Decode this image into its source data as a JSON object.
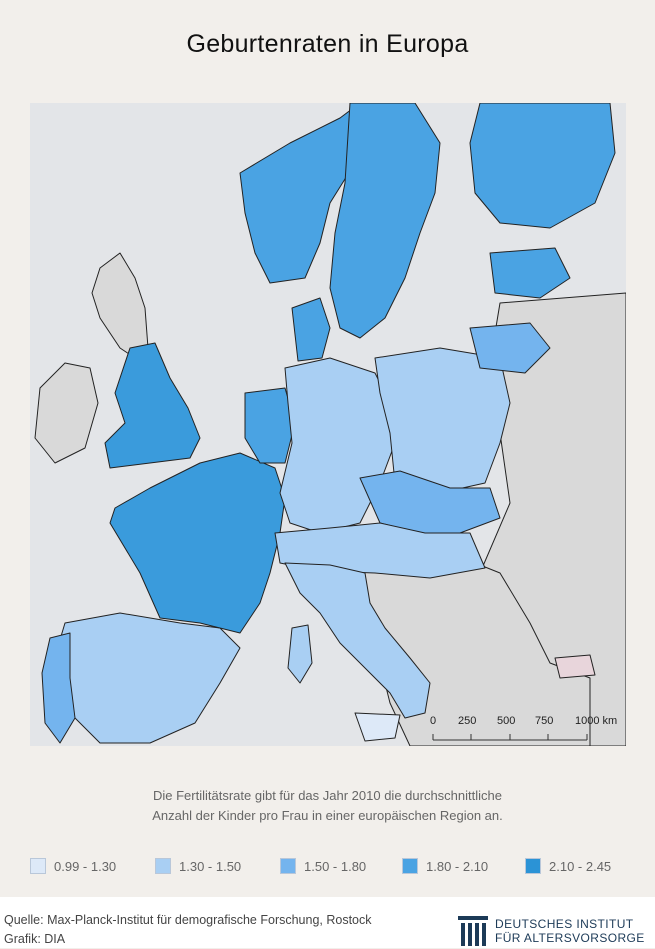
{
  "title": "Geburtenraten in Europa",
  "description": {
    "line1": "Die Fertilitätsrate gibt für das Jahr 2010 die durchschnittliche",
    "line2": "Anzahl der Kinder pro Frau in einer europäischen Region an."
  },
  "scale": {
    "labels": [
      "0",
      "250",
      "500",
      "750",
      "1000 km"
    ]
  },
  "legend": {
    "items": [
      {
        "label": "0.99 - 1.30",
        "color": "#dde9f8"
      },
      {
        "label": "1.30 - 1.50",
        "color": "#a9cff3"
      },
      {
        "label": "1.50 - 1.80",
        "color": "#74b4ee"
      },
      {
        "label": "1.80 - 2.10",
        "color": "#4aa3e3"
      },
      {
        "label": "2.10 - 2.45",
        "color": "#2b93d6"
      }
    ]
  },
  "colors": {
    "no_data": "#d9d9d9",
    "sea": "#e3e5e8",
    "band_1": "#dde9f8",
    "band_2": "#a9cff3",
    "band_3": "#74b4ee",
    "band_4": "#4aa3e3",
    "band_5": "#2b93d6",
    "other": "#e8d5db"
  },
  "footer": {
    "source": "Quelle: Max-Planck-Institut für demografische Forschung, Rostock",
    "credit": "Grafik: DIA",
    "logo_line1": "DEUTSCHES INSTITUT",
    "logo_line2": "FÜR ALTERSVORSORGE"
  }
}
